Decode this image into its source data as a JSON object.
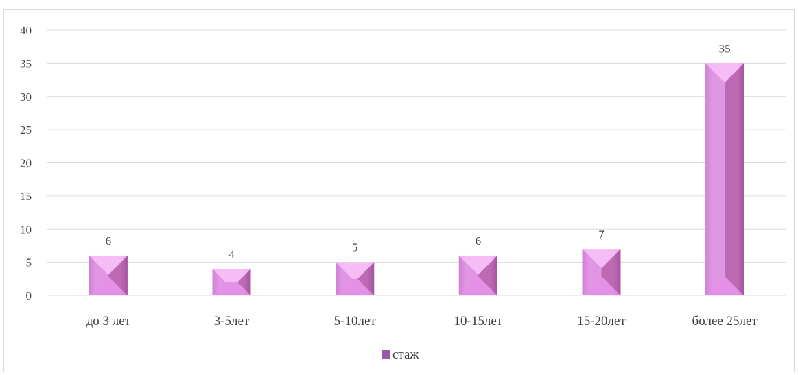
{
  "chart_data": {
    "type": "bar",
    "categories": [
      "до 3 лет",
      "3-5лет",
      "5-10лет",
      "10-15лет",
      "15-20лет",
      "более 25лет"
    ],
    "series": [
      {
        "name": "стаж",
        "values": [
          6,
          4,
          5,
          6,
          7,
          35
        ]
      }
    ],
    "title": "",
    "xlabel": "",
    "ylabel": "",
    "ylim": [
      0,
      40
    ],
    "yticks": [
      0,
      5,
      10,
      15,
      20,
      25,
      30,
      35,
      40
    ],
    "data_labels": true,
    "grid": true,
    "legend": "bottom",
    "colors": {
      "bar_light": "#f2a8f2",
      "bar_mid": "#e695e8",
      "bar_dark": "#b05cb8",
      "legend_swatch": "#9a5aa8",
      "grid": "#d9d9d9",
      "text": "#404040"
    }
  }
}
